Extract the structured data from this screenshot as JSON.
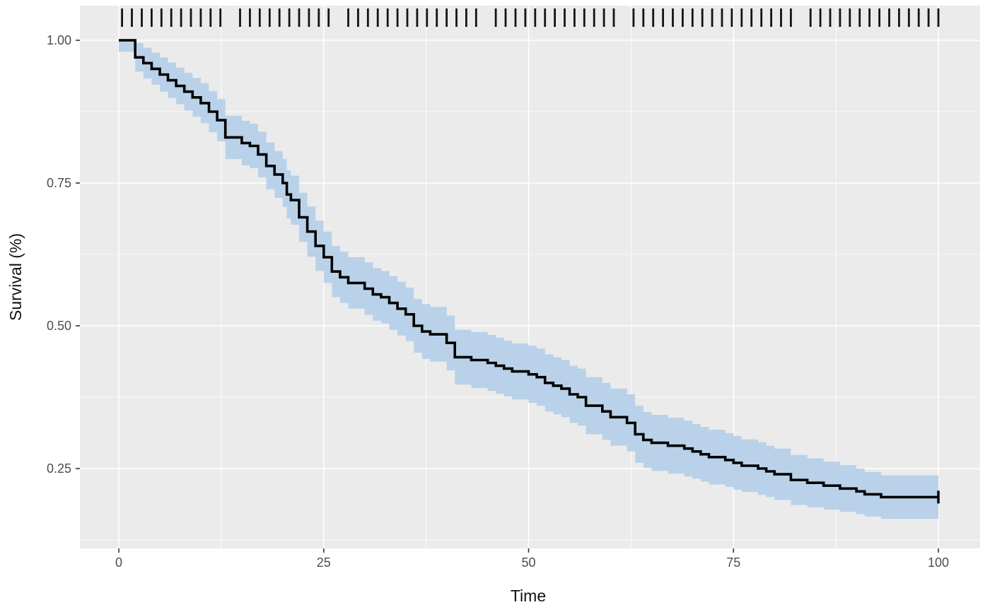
{
  "chart_data": {
    "type": "line",
    "chart_kind": "kaplan_meier_survival_curve_with_confidence_band_and_rug",
    "title": "",
    "xlabel": "Time",
    "ylabel": "Survival (%)",
    "xlim": [
      0,
      100
    ],
    "ylim": [
      0.15,
      1.0
    ],
    "grid": true,
    "legend": "none",
    "x_ticks": {
      "values": [
        0,
        25,
        50,
        75,
        100
      ],
      "labels": [
        "0",
        "25",
        "50",
        "75",
        "100"
      ]
    },
    "y_ticks": {
      "values": [
        1.0,
        0.75,
        0.5,
        0.25
      ],
      "labels": [
        "1.00",
        "0.75",
        "0.50",
        "0.25"
      ]
    },
    "x_minor_ticks": [
      12.5,
      37.5,
      62.5,
      87.5
    ],
    "y_minor_ticks": [
      0.125,
      0.375,
      0.625,
      0.875
    ],
    "series": [
      {
        "name": "survival",
        "x": [
          0,
          2,
          3,
          4,
          5,
          6,
          7,
          8,
          9,
          10,
          11,
          12,
          13,
          15,
          16,
          17,
          18,
          19,
          20,
          20.5,
          21,
          22,
          23,
          24,
          25,
          26,
          27,
          28,
          30,
          31,
          32,
          33,
          34,
          35,
          36,
          37,
          38,
          40,
          41,
          43,
          45,
          46,
          47,
          48,
          50,
          51,
          52,
          53,
          54,
          55,
          56,
          57,
          59,
          60,
          62,
          63,
          64,
          65,
          67,
          69,
          70,
          71,
          72,
          74,
          75,
          76,
          78,
          79,
          80,
          82,
          84,
          86,
          88,
          90,
          91,
          93,
          100
        ],
        "y": [
          1.0,
          0.97,
          0.96,
          0.95,
          0.94,
          0.93,
          0.92,
          0.91,
          0.9,
          0.89,
          0.875,
          0.86,
          0.83,
          0.82,
          0.815,
          0.8,
          0.78,
          0.765,
          0.75,
          0.73,
          0.72,
          0.69,
          0.665,
          0.64,
          0.62,
          0.595,
          0.585,
          0.575,
          0.565,
          0.555,
          0.55,
          0.54,
          0.53,
          0.52,
          0.5,
          0.49,
          0.485,
          0.47,
          0.445,
          0.44,
          0.435,
          0.43,
          0.425,
          0.42,
          0.415,
          0.41,
          0.4,
          0.395,
          0.39,
          0.38,
          0.375,
          0.36,
          0.35,
          0.34,
          0.33,
          0.31,
          0.3,
          0.295,
          0.29,
          0.285,
          0.28,
          0.275,
          0.27,
          0.265,
          0.26,
          0.255,
          0.25,
          0.245,
          0.24,
          0.23,
          0.225,
          0.22,
          0.215,
          0.21,
          0.205,
          0.2,
          0.2
        ],
        "ci_upper": [
          1.0,
          0.995,
          0.987,
          0.978,
          0.97,
          0.961,
          0.952,
          0.943,
          0.934,
          0.925,
          0.911,
          0.897,
          0.868,
          0.859,
          0.854,
          0.84,
          0.821,
          0.806,
          0.792,
          0.772,
          0.763,
          0.733,
          0.709,
          0.684,
          0.665,
          0.64,
          0.63,
          0.62,
          0.611,
          0.601,
          0.596,
          0.587,
          0.577,
          0.567,
          0.547,
          0.538,
          0.533,
          0.518,
          0.493,
          0.489,
          0.484,
          0.479,
          0.474,
          0.469,
          0.465,
          0.46,
          0.45,
          0.445,
          0.44,
          0.43,
          0.425,
          0.41,
          0.4,
          0.39,
          0.38,
          0.36,
          0.349,
          0.344,
          0.339,
          0.334,
          0.328,
          0.323,
          0.318,
          0.312,
          0.307,
          0.301,
          0.296,
          0.29,
          0.285,
          0.274,
          0.268,
          0.262,
          0.256,
          0.25,
          0.244,
          0.238,
          0.238
        ],
        "ci_lower": [
          0.98,
          0.945,
          0.933,
          0.922,
          0.91,
          0.899,
          0.888,
          0.877,
          0.866,
          0.855,
          0.839,
          0.823,
          0.792,
          0.781,
          0.776,
          0.76,
          0.739,
          0.724,
          0.708,
          0.688,
          0.677,
          0.647,
          0.621,
          0.596,
          0.575,
          0.55,
          0.54,
          0.53,
          0.519,
          0.509,
          0.504,
          0.493,
          0.483,
          0.473,
          0.453,
          0.442,
          0.437,
          0.422,
          0.397,
          0.391,
          0.386,
          0.381,
          0.376,
          0.371,
          0.365,
          0.36,
          0.35,
          0.345,
          0.34,
          0.33,
          0.325,
          0.31,
          0.3,
          0.29,
          0.28,
          0.26,
          0.251,
          0.246,
          0.241,
          0.236,
          0.232,
          0.227,
          0.222,
          0.218,
          0.213,
          0.209,
          0.204,
          0.2,
          0.195,
          0.186,
          0.182,
          0.178,
          0.174,
          0.17,
          0.166,
          0.162,
          0.162
        ]
      }
    ],
    "rug_times": [
      0.4,
      1.6,
      2.8,
      4,
      5.2,
      6.4,
      7.6,
      8.8,
      10,
      11.2,
      12.4,
      14.8,
      16,
      17.2,
      18.4,
      19.6,
      20.8,
      22,
      23.2,
      24.4,
      25.6,
      28,
      29.2,
      30.4,
      31.6,
      32.8,
      34,
      35.2,
      36.4,
      37.6,
      38.8,
      40,
      41.2,
      42.4,
      43.6,
      46,
      47.2,
      48.4,
      49.6,
      50.8,
      52,
      53.2,
      54.4,
      55.6,
      56.8,
      58,
      59.2,
      60.4,
      62.8,
      64,
      65.2,
      66.4,
      67.6,
      68.8,
      70,
      71.2,
      72.4,
      73.6,
      74.8,
      76,
      77.2,
      78.4,
      79.6,
      80.8,
      82,
      84.4,
      85.6,
      86.8,
      88,
      89.2,
      90.4,
      91.6,
      92.8,
      94,
      95.2,
      96.4,
      97.6,
      98.8,
      100
    ],
    "terminal_censor_time": 100,
    "colors": {
      "line": "#000000",
      "ci_band": "#b9d2e9",
      "panel_bg": "#ebebeb",
      "grid_major": "#ffffff",
      "grid_minor": "#ffffff",
      "rug": "#141414",
      "axis_tick": "#333333",
      "tick_text": "#4d4d4d",
      "title_text": "#111111"
    }
  }
}
